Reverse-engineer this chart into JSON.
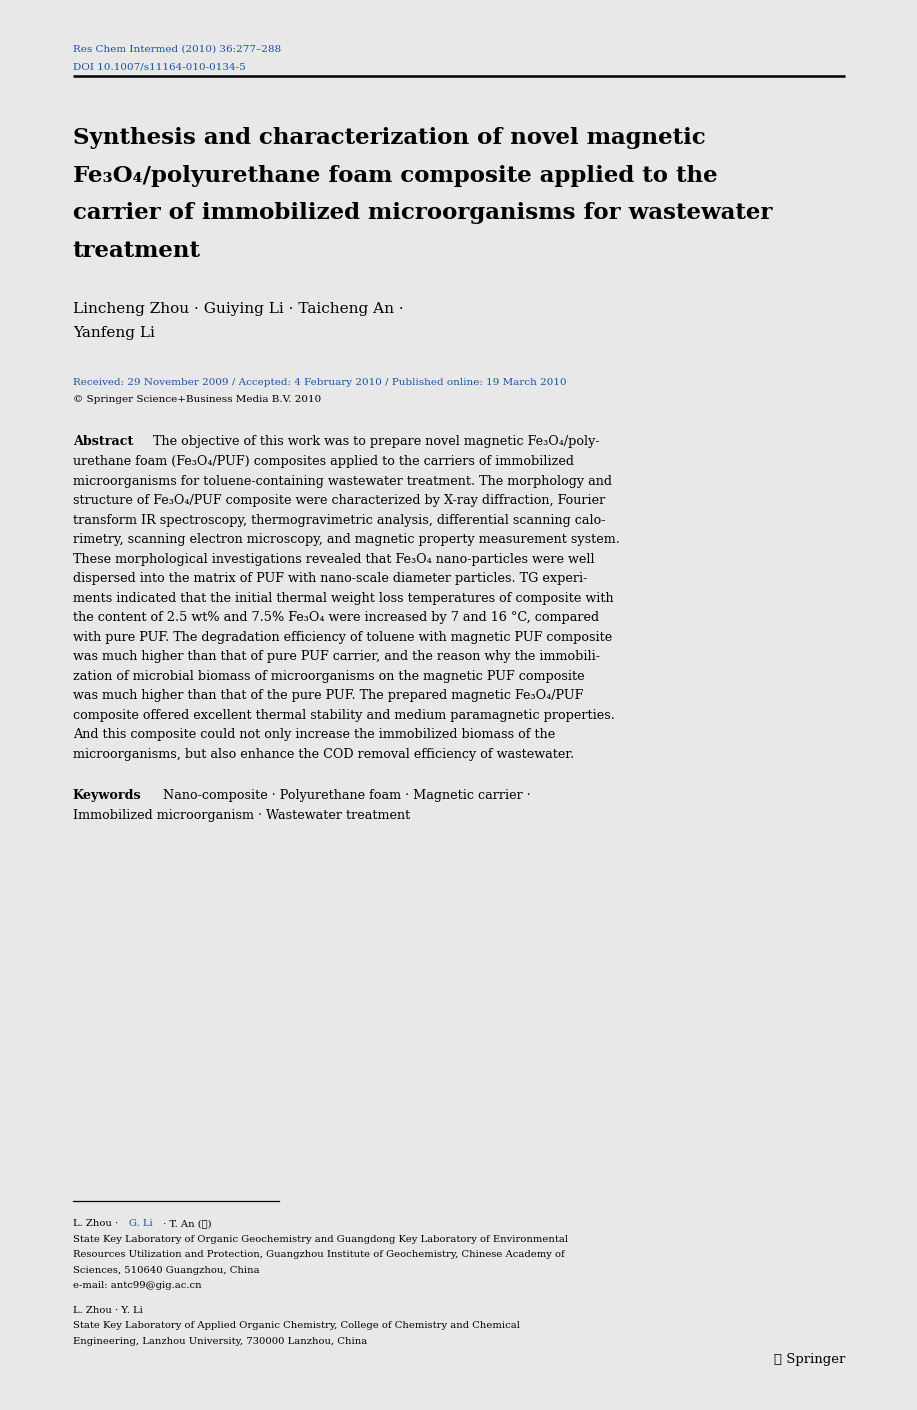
{
  "bg_color": "#e8e8e8",
  "page_bg": "#ffffff",
  "header_journal": "Res Chem Intermed (2010) 36:277–288",
  "header_doi": "DOI 10.1007/s11164-010-0134-5",
  "header_color": "#1a52a0",
  "title_line1": "Synthesis and characterization of novel magnetic",
  "title_line2": "Fe₃O₄/polyurethane foam composite applied to the",
  "title_line3": "carrier of immobilized microorganisms for wastewater",
  "title_line4": "treatment",
  "title_color": "#000000",
  "title_fs": 16.5,
  "authors_line1": "Lincheng Zhou · Guiying Li · Taicheng An ·",
  "authors_line2": "Yanfeng Li",
  "authors_color": "#000000",
  "authors_fs": 11.0,
  "received_text": "Received: 29 November 2009 / Accepted: 4 February 2010 / Published online: 19 March 2010",
  "springer_copyright": "© Springer Science+Business Media B.V. 2010",
  "dates_color": "#1a52a0",
  "text_color": "#000000",
  "abstract_fs": 9.2,
  "header_fs": 7.5,
  "foot_fs": 7.2,
  "abstract_lines": [
    "   The objective of this work was to prepare novel magnetic Fe₃O₄/poly-",
    "urethane foam (Fe₃O₄/PUF) composites applied to the carriers of immobilized",
    "microorganisms for toluene-containing wastewater treatment. The morphology and",
    "structure of Fe₃O₄/PUF composite were characterized by X-ray diffraction, Fourier",
    "transform IR spectroscopy, thermogravimetric analysis, differential scanning calo-",
    "rimetry, scanning electron microscopy, and magnetic property measurement system.",
    "These morphological investigations revealed that Fe₃O₄ nano-particles were well",
    "dispersed into the matrix of PUF with nano-scale diameter particles. TG experi-",
    "ments indicated that the initial thermal weight loss temperatures of composite with",
    "the content of 2.5 wt% and 7.5% Fe₃O₄ were increased by 7 and 16 °C, compared",
    "with pure PUF. The degradation efficiency of toluene with magnetic PUF composite",
    "was much higher than that of pure PUF carrier, and the reason why the immobili-",
    "zation of microbial biomass of microorganisms on the magnetic PUF composite",
    "was much higher than that of the pure PUF. The prepared magnetic Fe₃O₄/PUF",
    "composite offered excellent thermal stability and medium paramagnetic properties.",
    "And this composite could not only increase the immobilized biomass of the",
    "microorganisms, but also enhance the COD removal efficiency of wastewater."
  ],
  "keywords_line1": "   Nano-composite · Polyurethane foam · Magnetic carrier ·",
  "keywords_line2": "Immobilized microorganism · Wastewater treatment",
  "footer_names1a": "L. Zhou · ",
  "footer_names1b": "G. Li",
  "footer_names1c": " · T. An (✉)",
  "footer_names1b_color": "#1a52a0",
  "footer_affil1_lines": [
    "State Key Laboratory of Organic Geochemistry and Guangdong Key Laboratory of Environmental",
    "Resources Utilization and Protection, Guangzhou Institute of Geochemistry, Chinese Academy of",
    "Sciences, 510640 Guangzhou, China"
  ],
  "footer_email": "e-mail: antc99@gig.ac.cn",
  "footer_names2": "L. Zhou · Y. Li",
  "footer_affil2_lines": [
    "State Key Laboratory of Applied Organic Chemistry, College of Chemistry and Chemical",
    "Engineering, Lanzhou University, 730000 Lanzhou, China"
  ],
  "springer_logo": "Ⓢ Springer"
}
